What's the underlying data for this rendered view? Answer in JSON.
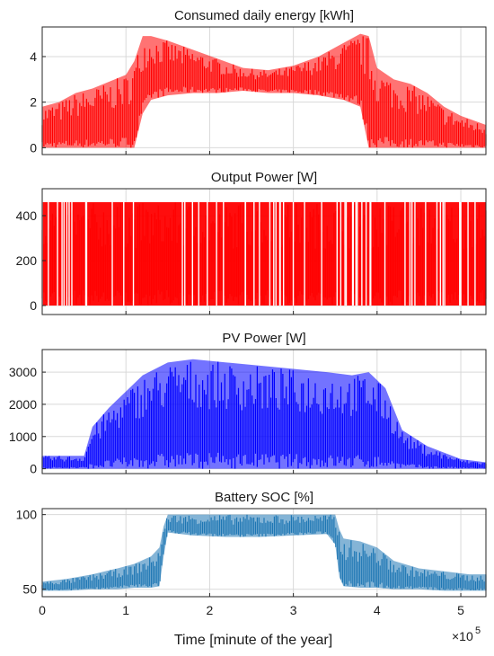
{
  "figure": {
    "xlabel": "Time [minute of the year]",
    "exponent_base": "×10",
    "exponent_power": "5"
  },
  "chart_data": [
    {
      "type": "area",
      "title": "Consumed daily energy [kWh]",
      "color": "#ff0000",
      "xlim": [
        0,
        5.3
      ],
      "ylim": [
        -0.3,
        5.3
      ],
      "yticks": [
        "0",
        "2",
        "4"
      ],
      "ytick_values": [
        0,
        2,
        4
      ],
      "xticks": [
        "0",
        "1",
        "2",
        "3",
        "4",
        "5"
      ],
      "grid": true,
      "series": [
        {
          "x": [
            0.0,
            0.2,
            0.4,
            0.6,
            0.8,
            1.0,
            1.1,
            1.2,
            1.3,
            1.5,
            1.8,
            2.1,
            2.4,
            2.7,
            3.0,
            3.3,
            3.6,
            3.8,
            3.9,
            4.0,
            4.2,
            4.4,
            4.6,
            4.8,
            5.0,
            5.3
          ],
          "upper": [
            1.8,
            2.0,
            2.4,
            2.6,
            2.9,
            3.2,
            3.8,
            4.9,
            4.9,
            4.7,
            4.3,
            3.9,
            3.5,
            3.4,
            3.6,
            4.0,
            4.6,
            5.0,
            4.9,
            3.5,
            3.0,
            2.8,
            2.4,
            1.8,
            1.4,
            1.0
          ],
          "lower": [
            0.0,
            0.0,
            0.0,
            0.0,
            0.0,
            0.0,
            0.0,
            1.5,
            2.1,
            2.3,
            2.4,
            2.4,
            2.5,
            2.4,
            2.4,
            2.3,
            2.1,
            1.8,
            0.0,
            0.0,
            0.0,
            0.0,
            0.0,
            0.0,
            0.0,
            0.0
          ]
        }
      ]
    },
    {
      "type": "area",
      "title": "Output Power [W]",
      "color": "#ff0000",
      "xlim": [
        0,
        5.3
      ],
      "ylim": [
        -40,
        520
      ],
      "yticks": [
        "0",
        "200",
        "400"
      ],
      "ytick_values": [
        0,
        200,
        400
      ],
      "xticks": [
        "0",
        "1",
        "2",
        "3",
        "4",
        "5"
      ],
      "grid": true,
      "series": [
        {
          "x": [
            0.0,
            5.3
          ],
          "upper": [
            460,
            460
          ],
          "lower": [
            0,
            0
          ]
        }
      ]
    },
    {
      "type": "area",
      "title": "PV Power [W]",
      "color": "#0000ff",
      "xlim": [
        0,
        5.3
      ],
      "ylim": [
        -150,
        3700
      ],
      "yticks": [
        "0",
        "1000",
        "2000",
        "3000"
      ],
      "ytick_values": [
        0,
        1000,
        2000,
        3000
      ],
      "xticks": [
        "0",
        "1",
        "2",
        "3",
        "4",
        "5"
      ],
      "grid": true,
      "series": [
        {
          "x": [
            0.0,
            0.5,
            0.6,
            0.8,
            1.0,
            1.2,
            1.5,
            1.8,
            2.2,
            2.6,
            3.0,
            3.4,
            3.7,
            3.9,
            4.1,
            4.3,
            4.6,
            5.0,
            5.3
          ],
          "upper": [
            400,
            400,
            1300,
            1900,
            2400,
            2900,
            3300,
            3400,
            3300,
            3200,
            3100,
            3000,
            2900,
            3000,
            2500,
            1200,
            700,
            300,
            200
          ],
          "lower": [
            0,
            0,
            0,
            0,
            0,
            0,
            0,
            0,
            0,
            0,
            0,
            0,
            0,
            0,
            0,
            0,
            0,
            0,
            0
          ]
        }
      ]
    },
    {
      "type": "area",
      "title": "Battery SOC [%]",
      "color": "#1f77b4",
      "xlim": [
        0,
        5.3
      ],
      "ylim": [
        45,
        104
      ],
      "yticks": [
        "50",
        "100"
      ],
      "ytick_values": [
        50,
        100
      ],
      "xticks": [
        "0",
        "1",
        "2",
        "3",
        "4",
        "5"
      ],
      "grid": true,
      "series": [
        {
          "x": [
            0.0,
            0.3,
            0.6,
            0.9,
            1.1,
            1.3,
            1.4,
            1.45,
            1.5,
            1.8,
            2.2,
            2.6,
            3.0,
            3.4,
            3.5,
            3.55,
            3.6,
            3.8,
            4.0,
            4.2,
            4.5,
            4.8,
            5.1,
            5.3
          ],
          "upper": [
            55,
            57,
            60,
            64,
            67,
            72,
            78,
            92,
            100,
            100,
            100,
            100,
            100,
            100,
            100,
            90,
            84,
            82,
            78,
            69,
            64,
            62,
            60,
            60
          ],
          "lower": [
            49,
            49,
            50,
            50,
            51,
            51,
            52,
            72,
            88,
            86,
            85,
            85,
            86,
            87,
            80,
            58,
            52,
            51,
            51,
            50,
            50,
            49,
            49,
            49
          ]
        }
      ]
    }
  ]
}
